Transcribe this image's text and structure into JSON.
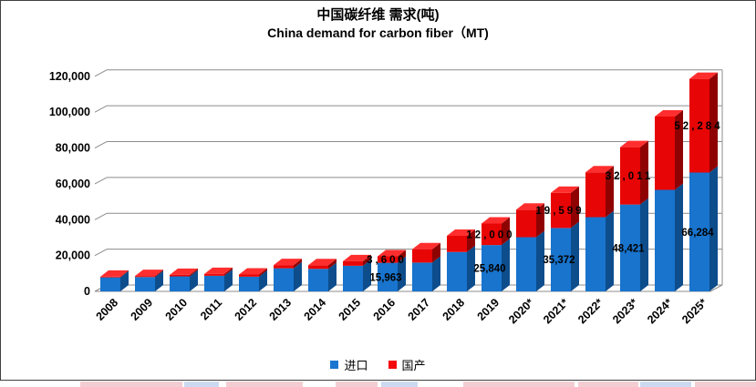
{
  "title": {
    "line1_zh": "中国碳纤维 需求(吨)",
    "line2_en": "China demand for carbon fiber（MT)"
  },
  "legend": {
    "items": [
      {
        "label": "进口",
        "color": "#1B76D1"
      },
      {
        "label": "国产",
        "color": "#F50A0A"
      }
    ]
  },
  "chart_data": {
    "type": "bar",
    "stacked": true,
    "style": "3d",
    "title": "中国碳纤维 需求(吨)",
    "subtitle": "China demand for carbon fiber（MT)",
    "categories": [
      "2008",
      "2009",
      "2010",
      "2011",
      "2012",
      "2013",
      "2014",
      "2015",
      "2016",
      "2017",
      "2018",
      "2019",
      "2020*",
      "2021*",
      "2022*",
      "2023*",
      "2024*",
      "2025*"
    ],
    "series": [
      {
        "name": "进口",
        "color": "#1874CD",
        "side_color": "#0D4D8C",
        "top_color": "#4C95DA",
        "values": [
          7800,
          8000,
          8400,
          8700,
          8200,
          12900,
          12600,
          14300,
          15963,
          16087,
          22000,
          25840,
          30233,
          35372,
          41385,
          48421,
          56652,
          66284
        ]
      },
      {
        "name": "国产",
        "color": "#E80505",
        "side_color": "#8F0202",
        "top_color": "#FF2E2E",
        "values": [
          400,
          600,
          800,
          1000,
          1200,
          1800,
          2000,
          2500,
          3600,
          7400,
          9000,
          12000,
          15336,
          19599,
          25047,
          32011,
          40910,
          52284
        ]
      }
    ],
    "data_labels": {
      "labeled_categories": [
        "2016",
        "2019",
        "2021*",
        "2023*",
        "2025*"
      ],
      "进口": [
        "15,963",
        "25,840",
        "35,372",
        "48,421",
        "66,284"
      ],
      "国产": [
        "3,600",
        "12,000",
        "19,599",
        "32,011",
        "52,284"
      ]
    },
    "ylabel": "",
    "xlabel": "",
    "ylim": [
      0,
      120000
    ],
    "ytick_step": 20000,
    "ytick_labels": [
      "0",
      "20,000",
      "40,000",
      "60,000",
      "80,000",
      "100,000",
      "120,000"
    ],
    "grid": true,
    "gridline_color": "#8C8C8C",
    "legend_position": "bottom"
  }
}
